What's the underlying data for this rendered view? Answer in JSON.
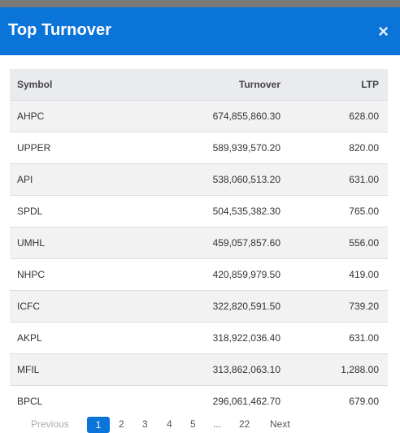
{
  "modal": {
    "title": "Top Turnover",
    "close_label": "×"
  },
  "table": {
    "headers": [
      "Symbol",
      "Turnover",
      "LTP"
    ],
    "rows": [
      {
        "symbol": "AHPC",
        "turnover": "674,855,860.30",
        "ltp": "628.00"
      },
      {
        "symbol": "UPPER",
        "turnover": "589,939,570.20",
        "ltp": "820.00"
      },
      {
        "symbol": "API",
        "turnover": "538,060,513.20",
        "ltp": "631.00"
      },
      {
        "symbol": "SPDL",
        "turnover": "504,535,382.30",
        "ltp": "765.00"
      },
      {
        "symbol": "UMHL",
        "turnover": "459,057,857.60",
        "ltp": "556.00"
      },
      {
        "symbol": "NHPC",
        "turnover": "420,859,979.50",
        "ltp": "419.00"
      },
      {
        "symbol": "ICFC",
        "turnover": "322,820,591.50",
        "ltp": "739.20"
      },
      {
        "symbol": "AKPL",
        "turnover": "318,922,036.40",
        "ltp": "631.00"
      },
      {
        "symbol": "MFIL",
        "turnover": "313,862,063.10",
        "ltp": "1,288.00"
      },
      {
        "symbol": "BPCL",
        "turnover": "296,061,462.70",
        "ltp": "679.00"
      }
    ]
  },
  "pagination": {
    "previous": "Previous",
    "active_page": "1",
    "pages": [
      "2",
      "3",
      "4",
      "5",
      "...",
      "22"
    ],
    "next": "Next"
  }
}
